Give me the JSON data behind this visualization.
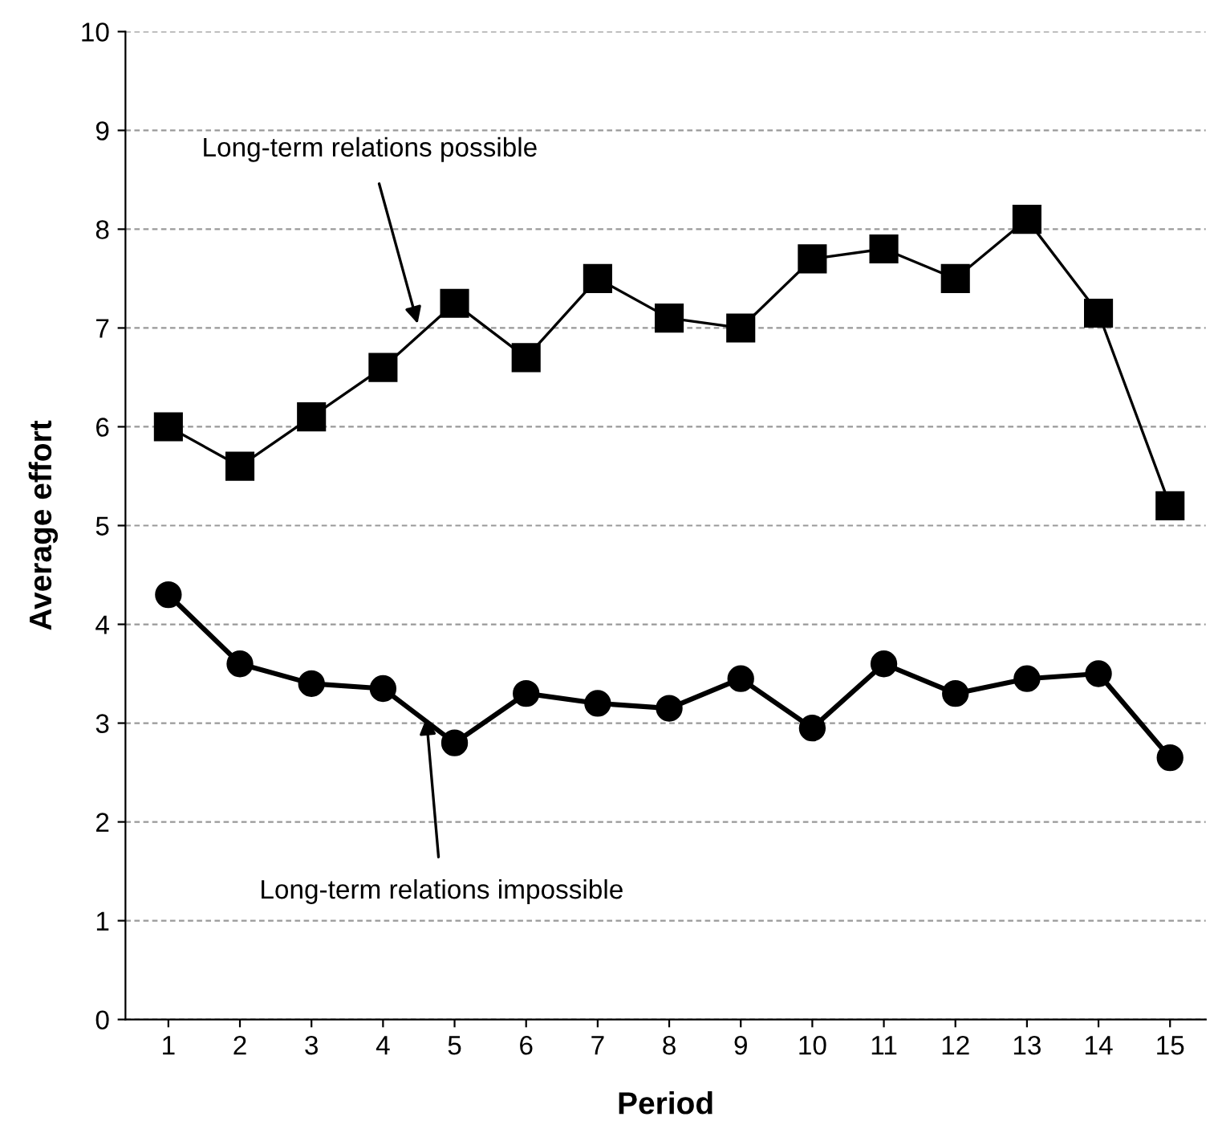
{
  "chart_data": {
    "type": "line",
    "xlabel": "Period",
    "ylabel": "Average effort",
    "x": [
      1,
      2,
      3,
      4,
      5,
      6,
      7,
      8,
      9,
      10,
      11,
      12,
      13,
      14,
      15
    ],
    "series": [
      {
        "values": [
          6.0,
          5.6,
          6.1,
          6.6,
          7.25,
          6.7,
          7.5,
          7.1,
          7.0,
          7.7,
          7.8,
          7.5,
          8.1,
          7.15,
          5.2
        ],
        "color": "#000000",
        "marker": "square"
      },
      {
        "values": [
          4.3,
          3.6,
          3.4,
          3.35,
          2.8,
          3.3,
          3.2,
          3.15,
          3.45,
          2.95,
          3.6,
          3.3,
          3.45,
          3.5,
          2.65
        ],
        "color": "#000000",
        "marker": "circle"
      }
    ],
    "annotations": [
      {
        "text": "Long-term relations possible",
        "x": 4.5,
        "y": 7.0
      },
      {
        "text": "Long-term relations impossible",
        "x": 4.6,
        "y": 3.1
      }
    ],
    "xlim": [
      0.4,
      15.5
    ],
    "xticks": [
      1,
      2,
      3,
      4,
      5,
      6,
      7,
      8,
      9,
      10,
      11,
      12,
      13,
      14,
      15
    ],
    "ylim": [
      0,
      10
    ],
    "yticks": [
      0,
      1,
      2,
      3,
      4,
      5,
      6,
      7,
      8,
      9,
      10
    ],
    "grid": "y",
    "line_style": "solid"
  }
}
